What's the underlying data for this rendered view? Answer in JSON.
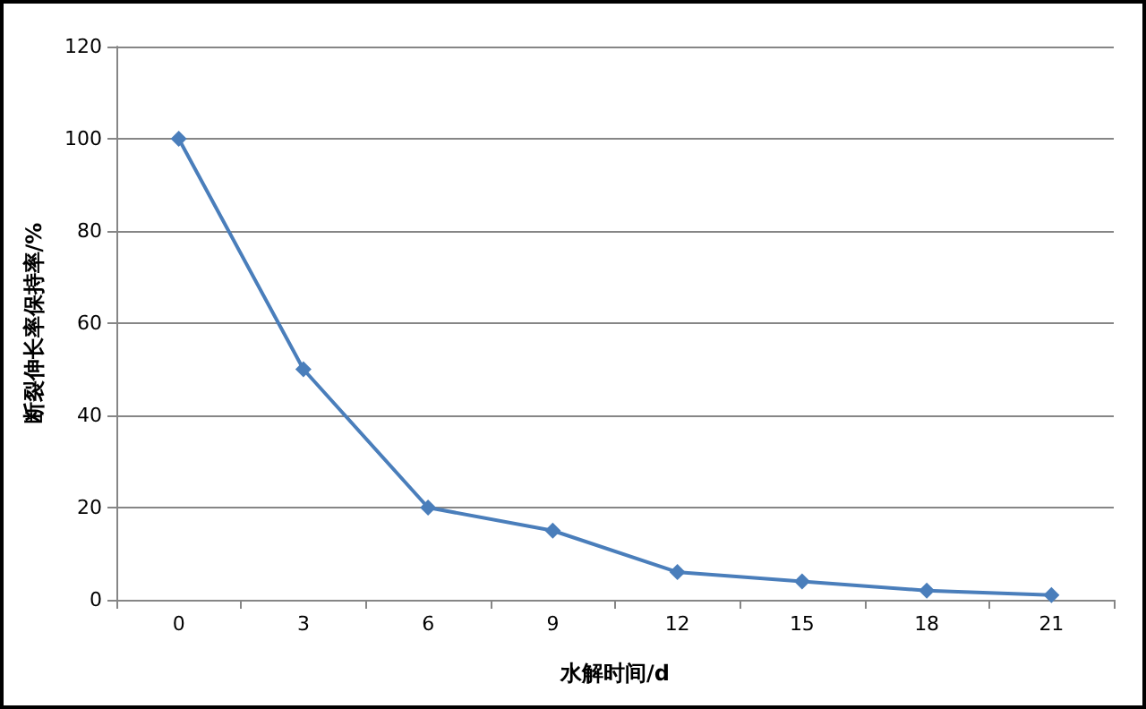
{
  "chart_data": {
    "type": "line",
    "xlabel": "水解时间/d",
    "ylabel": "断裂伸长率保持率/%",
    "categories": [
      "0",
      "3",
      "6",
      "9",
      "12",
      "15",
      "18",
      "21"
    ],
    "series": [
      {
        "color": "#4a7ebb",
        "values": [
          100,
          50,
          20,
          15,
          6,
          4,
          2,
          1
        ]
      }
    ],
    "ylim": [
      0,
      120
    ],
    "yticks": [
      0,
      20,
      40,
      60,
      80,
      100,
      120
    ],
    "grid": "y",
    "marker": "diamond",
    "line_style": "solid"
  }
}
